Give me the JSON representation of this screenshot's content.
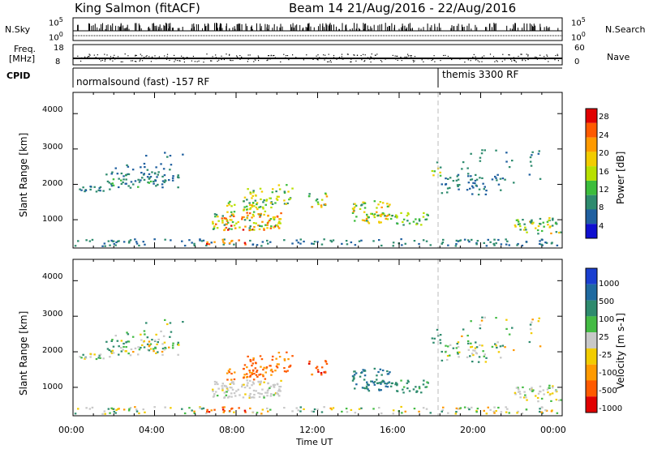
{
  "header": {
    "station": "King Salmon (fitACF)",
    "beam_info": "Beam 14 21/Aug/2016 - 22/Aug/2016"
  },
  "strip_labels": {
    "nsky": "N.Sky",
    "nsky_ticks": [
      "10^5",
      "10^0"
    ],
    "nsearch": "N.Search",
    "nsearch_ticks": [
      "10^5",
      "10^0"
    ],
    "freq_top": "Freq.",
    "freq_unit": "[MHz]",
    "freq_ticks": [
      "18",
      "8"
    ],
    "nave": "Nave",
    "nave_ticks": [
      "60",
      "0"
    ],
    "cpid": "CPID",
    "cpid_left": "normalsound (fast) -157 RF",
    "cpid_right": "themis 3300 RF"
  },
  "chart_data": [
    {
      "type": "heatmap",
      "name": "power",
      "ylabel": "Slant Range [km]",
      "yticks": [
        1000,
        2000,
        3000,
        4000
      ],
      "ylim": [
        200,
        4600
      ],
      "xlim": [
        0,
        24
      ],
      "colorbar_label": "Power [dB]",
      "colorbar_ticks": [
        "28",
        "24",
        "20",
        "16",
        "12",
        "8",
        "4"
      ],
      "colorbar_colors": [
        "#e00000",
        "#ff5a00",
        "#ff9a00",
        "#f2cc00",
        "#b8e000",
        "#3cbd3c",
        "#2e8b6e",
        "#2060a0",
        "#1010d0"
      ]
    },
    {
      "type": "heatmap",
      "name": "velocity",
      "ylabel": "Slant Range [km]",
      "yticks": [
        1000,
        2000,
        3000,
        4000
      ],
      "ylim": [
        200,
        4600
      ],
      "xlim": [
        0,
        24
      ],
      "colorbar_label": "Velocity [m s-1]",
      "colorbar_ticks": [
        "1000",
        "500",
        "100",
        "25",
        "-25",
        "-100",
        "-500",
        "-1000"
      ],
      "colorbar_colors": [
        "#1a3fd0",
        "#1f6aa0",
        "#2e8b6e",
        "#44bb44",
        "#c8c8c8",
        "#f2cc00",
        "#ff9a00",
        "#ff5a00",
        "#e00000"
      ]
    }
  ],
  "x_axis": {
    "tick_labels": [
      "00:00",
      "04:00",
      "08:00",
      "12:00",
      "16:00",
      "20:00",
      "00:00"
    ],
    "label": "Time UT"
  },
  "echo_regions": [
    {
      "t0": 0.1,
      "t1": 1.8,
      "r0": 1780,
      "r1": 1950,
      "p": 0.7,
      "pw": [
        4,
        10
      ],
      "v": [
        -50,
        150
      ]
    },
    {
      "t0": 1.5,
      "t1": 5.2,
      "r0": 1900,
      "r1": 2350,
      "p": 0.55,
      "pw": [
        4,
        12
      ],
      "v": [
        -80,
        120
      ]
    },
    {
      "t0": 2.0,
      "t1": 5.0,
      "r0": 2400,
      "r1": 2600,
      "p": 0.25,
      "pw": [
        4,
        10
      ],
      "v": [
        -50,
        100
      ]
    },
    {
      "t0": 6.8,
      "t1": 10.2,
      "r0": 700,
      "r1": 1200,
      "p": 0.8,
      "pw": [
        8,
        30
      ],
      "v": [
        -30,
        30
      ]
    },
    {
      "t0": 7.5,
      "t1": 9.5,
      "r0": 1200,
      "r1": 1550,
      "p": 0.5,
      "pw": [
        10,
        22
      ],
      "v": [
        -600,
        -150
      ]
    },
    {
      "t0": 8.2,
      "t1": 9.8,
      "r0": 1300,
      "r1": 1900,
      "p": 0.45,
      "pw": [
        8,
        20
      ],
      "v": [
        -700,
        -200
      ]
    },
    {
      "t0": 9.8,
      "t1": 10.8,
      "r0": 1400,
      "r1": 2000,
      "p": 0.4,
      "pw": [
        8,
        22
      ],
      "v": [
        -500,
        -150
      ]
    },
    {
      "t0": 11.5,
      "t1": 12.5,
      "r0": 1350,
      "r1": 1750,
      "p": 0.55,
      "pw": [
        10,
        24
      ],
      "v": [
        -800,
        -200
      ]
    },
    {
      "t0": 13.5,
      "t1": 15.5,
      "r0": 900,
      "r1": 1550,
      "p": 0.6,
      "pw": [
        8,
        24
      ],
      "v": [
        100,
        500
      ]
    },
    {
      "t0": 15.5,
      "t1": 17.5,
      "r0": 850,
      "r1": 1200,
      "p": 0.55,
      "pw": [
        8,
        18
      ],
      "v": [
        50,
        300
      ]
    },
    {
      "t0": 17.5,
      "t1": 18.0,
      "r0": 2200,
      "r1": 2650,
      "p": 0.45,
      "pw": [
        8,
        20
      ],
      "v": [
        50,
        200
      ]
    },
    {
      "t0": 18.0,
      "t1": 21.0,
      "r0": 1700,
      "r1": 2300,
      "p": 0.35,
      "pw": [
        4,
        10
      ],
      "v": [
        -50,
        100
      ]
    },
    {
      "t0": 21.5,
      "t1": 23.9,
      "r0": 600,
      "r1": 1050,
      "p": 0.55,
      "pw": [
        8,
        22
      ],
      "v": [
        -60,
        60
      ]
    },
    {
      "t0": 0.0,
      "t1": 24.0,
      "r0": 250,
      "r1": 450,
      "p": 0.35,
      "pw": [
        4,
        10
      ],
      "v": [
        -80,
        80
      ]
    },
    {
      "t0": 3.5,
      "t1": 5.5,
      "r0": 2700,
      "r1": 3100,
      "p": 0.08,
      "pw": [
        4,
        10
      ],
      "v": [
        -50,
        100
      ]
    },
    {
      "t0": 19.0,
      "t1": 23.0,
      "r0": 2000,
      "r1": 3000,
      "p": 0.08,
      "pw": [
        4,
        10
      ],
      "v": [
        -100,
        100
      ]
    },
    {
      "t0": 6.5,
      "t1": 8.5,
      "r0": 300,
      "r1": 450,
      "p": 0.5,
      "pw": [
        20,
        30
      ],
      "v": [
        -800,
        -200
      ]
    }
  ]
}
